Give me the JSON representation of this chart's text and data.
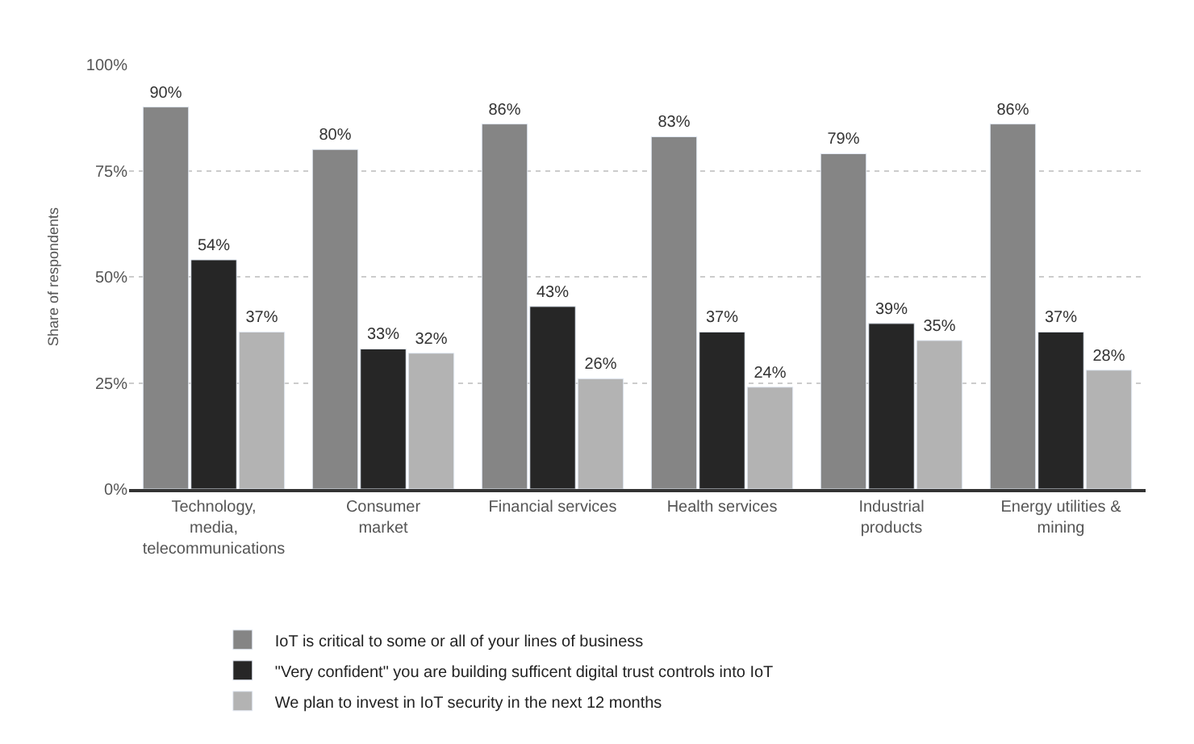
{
  "chart_data": {
    "type": "bar",
    "ylabel": "Share of respondents",
    "categories": [
      "Technology,\nmedia,\ntelecommunications",
      "Consumer\nmarket",
      "Financial services",
      "Health services",
      "Industrial\nproducts",
      "Energy utilities &\nmining"
    ],
    "series": [
      {
        "name": "IoT is critical to some or all of your lines of business",
        "color": "#858585",
        "values": [
          90,
          80,
          86,
          83,
          79,
          86
        ],
        "value_labels": [
          "90%",
          "80%",
          "86%",
          "83%",
          "79%",
          "86%"
        ]
      },
      {
        "name": "\"Very confident\" you are building sufficent digital trust controls into IoT",
        "color": "#262626",
        "values": [
          54,
          33,
          43,
          37,
          39,
          37
        ],
        "value_labels": [
          "54%",
          "33%",
          "43%",
          "37%",
          "39%",
          "37%"
        ]
      },
      {
        "name": "We plan to invest in IoT security in the next 12 months",
        "color": "#b3b3b3",
        "values": [
          37,
          32,
          26,
          24,
          35,
          28
        ],
        "value_labels": [
          "37%",
          "32%",
          "26%",
          "24%",
          "35%",
          "28%"
        ]
      }
    ],
    "ylim": [
      0,
      100
    ],
    "yticks": [
      {
        "value": 0,
        "label": "0%"
      },
      {
        "value": 25,
        "label": "25%"
      },
      {
        "value": 50,
        "label": "50%"
      },
      {
        "value": 75,
        "label": "75%"
      },
      {
        "value": 100,
        "label": "100%"
      }
    ],
    "grid": "y",
    "legend": "bottom"
  }
}
